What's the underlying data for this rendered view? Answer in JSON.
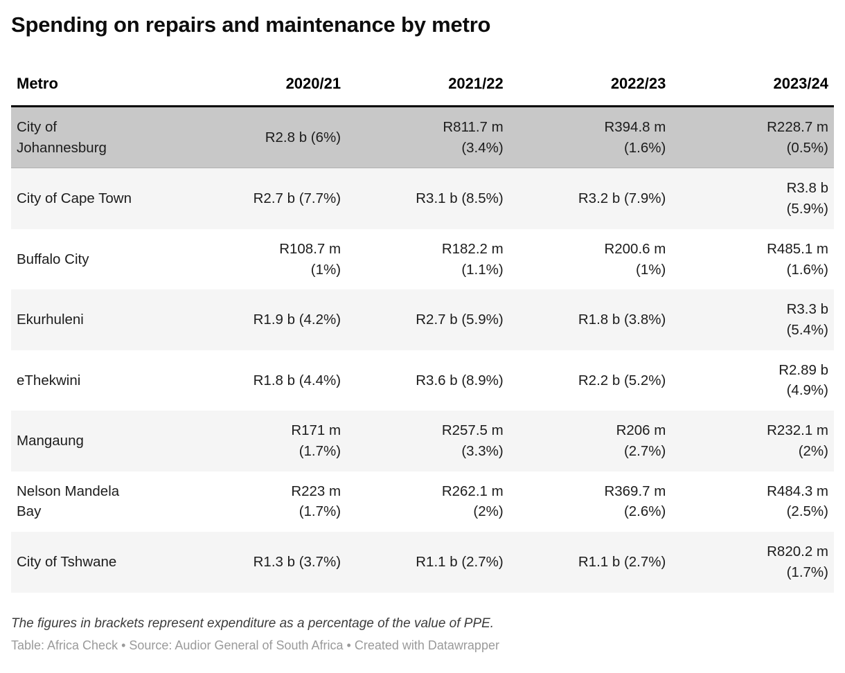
{
  "title": "Spending on repairs and maintenance by metro",
  "table": {
    "columns": [
      "Metro",
      "2020/21",
      "2021/22",
      "2022/23",
      "2023/24"
    ],
    "rows": [
      {
        "metro": "City of\nJohannesburg",
        "highlight": true,
        "values": [
          "R2.8 b (6%)",
          "R811.7 m\n(3.4%)",
          "R394.8 m\n(1.6%)",
          "R228.7 m\n(0.5%)"
        ]
      },
      {
        "metro": "City of Cape Town",
        "highlight": false,
        "values": [
          "R2.7 b (7.7%)",
          "R3.1 b (8.5%)",
          "R3.2 b (7.9%)",
          "R3.8 b\n(5.9%)"
        ]
      },
      {
        "metro": "Buffalo City",
        "highlight": false,
        "values": [
          "R108.7 m\n(1%)",
          "R182.2 m\n(1.1%)",
          "R200.6 m\n(1%)",
          "R485.1 m\n(1.6%)"
        ]
      },
      {
        "metro": "Ekurhuleni",
        "highlight": false,
        "values": [
          "R1.9 b (4.2%)",
          "R2.7 b (5.9%)",
          "R1.8 b (3.8%)",
          "R3.3 b\n(5.4%)"
        ]
      },
      {
        "metro": "eThekwini",
        "highlight": false,
        "values": [
          "R1.8 b (4.4%)",
          "R3.6 b (8.9%)",
          "R2.2 b (5.2%)",
          "R2.89 b\n(4.9%)"
        ]
      },
      {
        "metro": "Mangaung",
        "highlight": false,
        "values": [
          "R171 m\n(1.7%)",
          "R257.5 m\n(3.3%)",
          "R206 m\n(2.7%)",
          "R232.1 m\n(2%)"
        ]
      },
      {
        "metro": "Nelson Mandela\nBay",
        "highlight": false,
        "values": [
          "R223 m\n(1.7%)",
          "R262.1 m\n(2%)",
          "R369.7 m\n(2.6%)",
          "R484.3 m\n(2.5%)"
        ]
      },
      {
        "metro": "City of Tshwane",
        "highlight": false,
        "values": [
          "R1.3 b (3.7%)",
          "R1.1 b (2.7%)",
          "R1.1 b (2.7%)",
          "R820.2 m\n(1.7%)"
        ]
      }
    ]
  },
  "footnote": "The figures in brackets represent expenditure as a percentage of the value of PPE.",
  "attribution": "Table: Africa Check • Source: Audior General of South Africa • Created with Datawrapper",
  "colors": {
    "highlight_row": "#c8c8c8",
    "zebra_row": "#f5f5f5",
    "header_border": "#000000",
    "attribution_text": "#9a9a9a"
  },
  "chart_data": {
    "type": "table",
    "title": "Spending on repairs and maintenance by metro",
    "columns": [
      "Metro",
      "2020/21",
      "2021/22",
      "2022/23",
      "2023/24"
    ],
    "rows": [
      [
        "City of Johannesburg",
        "R2.8 b (6%)",
        "R811.7 m (3.4%)",
        "R394.8 m (1.6%)",
        "R228.7 m (0.5%)"
      ],
      [
        "City of Cape Town",
        "R2.7 b (7.7%)",
        "R3.1 b (8.5%)",
        "R3.2 b (7.9%)",
        "R3.8 b (5.9%)"
      ],
      [
        "Buffalo City",
        "R108.7 m (1%)",
        "R182.2 m (1.1%)",
        "R200.6 m (1%)",
        "R485.1 m (1.6%)"
      ],
      [
        "Ekurhuleni",
        "R1.9 b (4.2%)",
        "R2.7 b (5.9%)",
        "R1.8 b (3.8%)",
        "R3.3 b (5.4%)"
      ],
      [
        "eThekwini",
        "R1.8 b (4.4%)",
        "R3.6 b (8.9%)",
        "R2.2 b (5.2%)",
        "R2.89 b (4.9%)"
      ],
      [
        "Mangaung",
        "R171 m (1.7%)",
        "R257.5 m (3.3%)",
        "R206 m (2.7%)",
        "R232.1 m (2%)"
      ],
      [
        "Nelson Mandela Bay",
        "R223 m (1.7%)",
        "R262.1 m (2%)",
        "R369.7 m (2.6%)",
        "R484.3 m (2.5%)"
      ],
      [
        "City of Tshwane",
        "R1.3 b (3.7%)",
        "R1.1 b (2.7%)",
        "R1.1 b (2.7%)",
        "R820.2 m (1.7%)"
      ]
    ],
    "highlighted_row": "City of Johannesburg",
    "note": "The figures in brackets represent expenditure as a percentage of the value of PPE."
  }
}
